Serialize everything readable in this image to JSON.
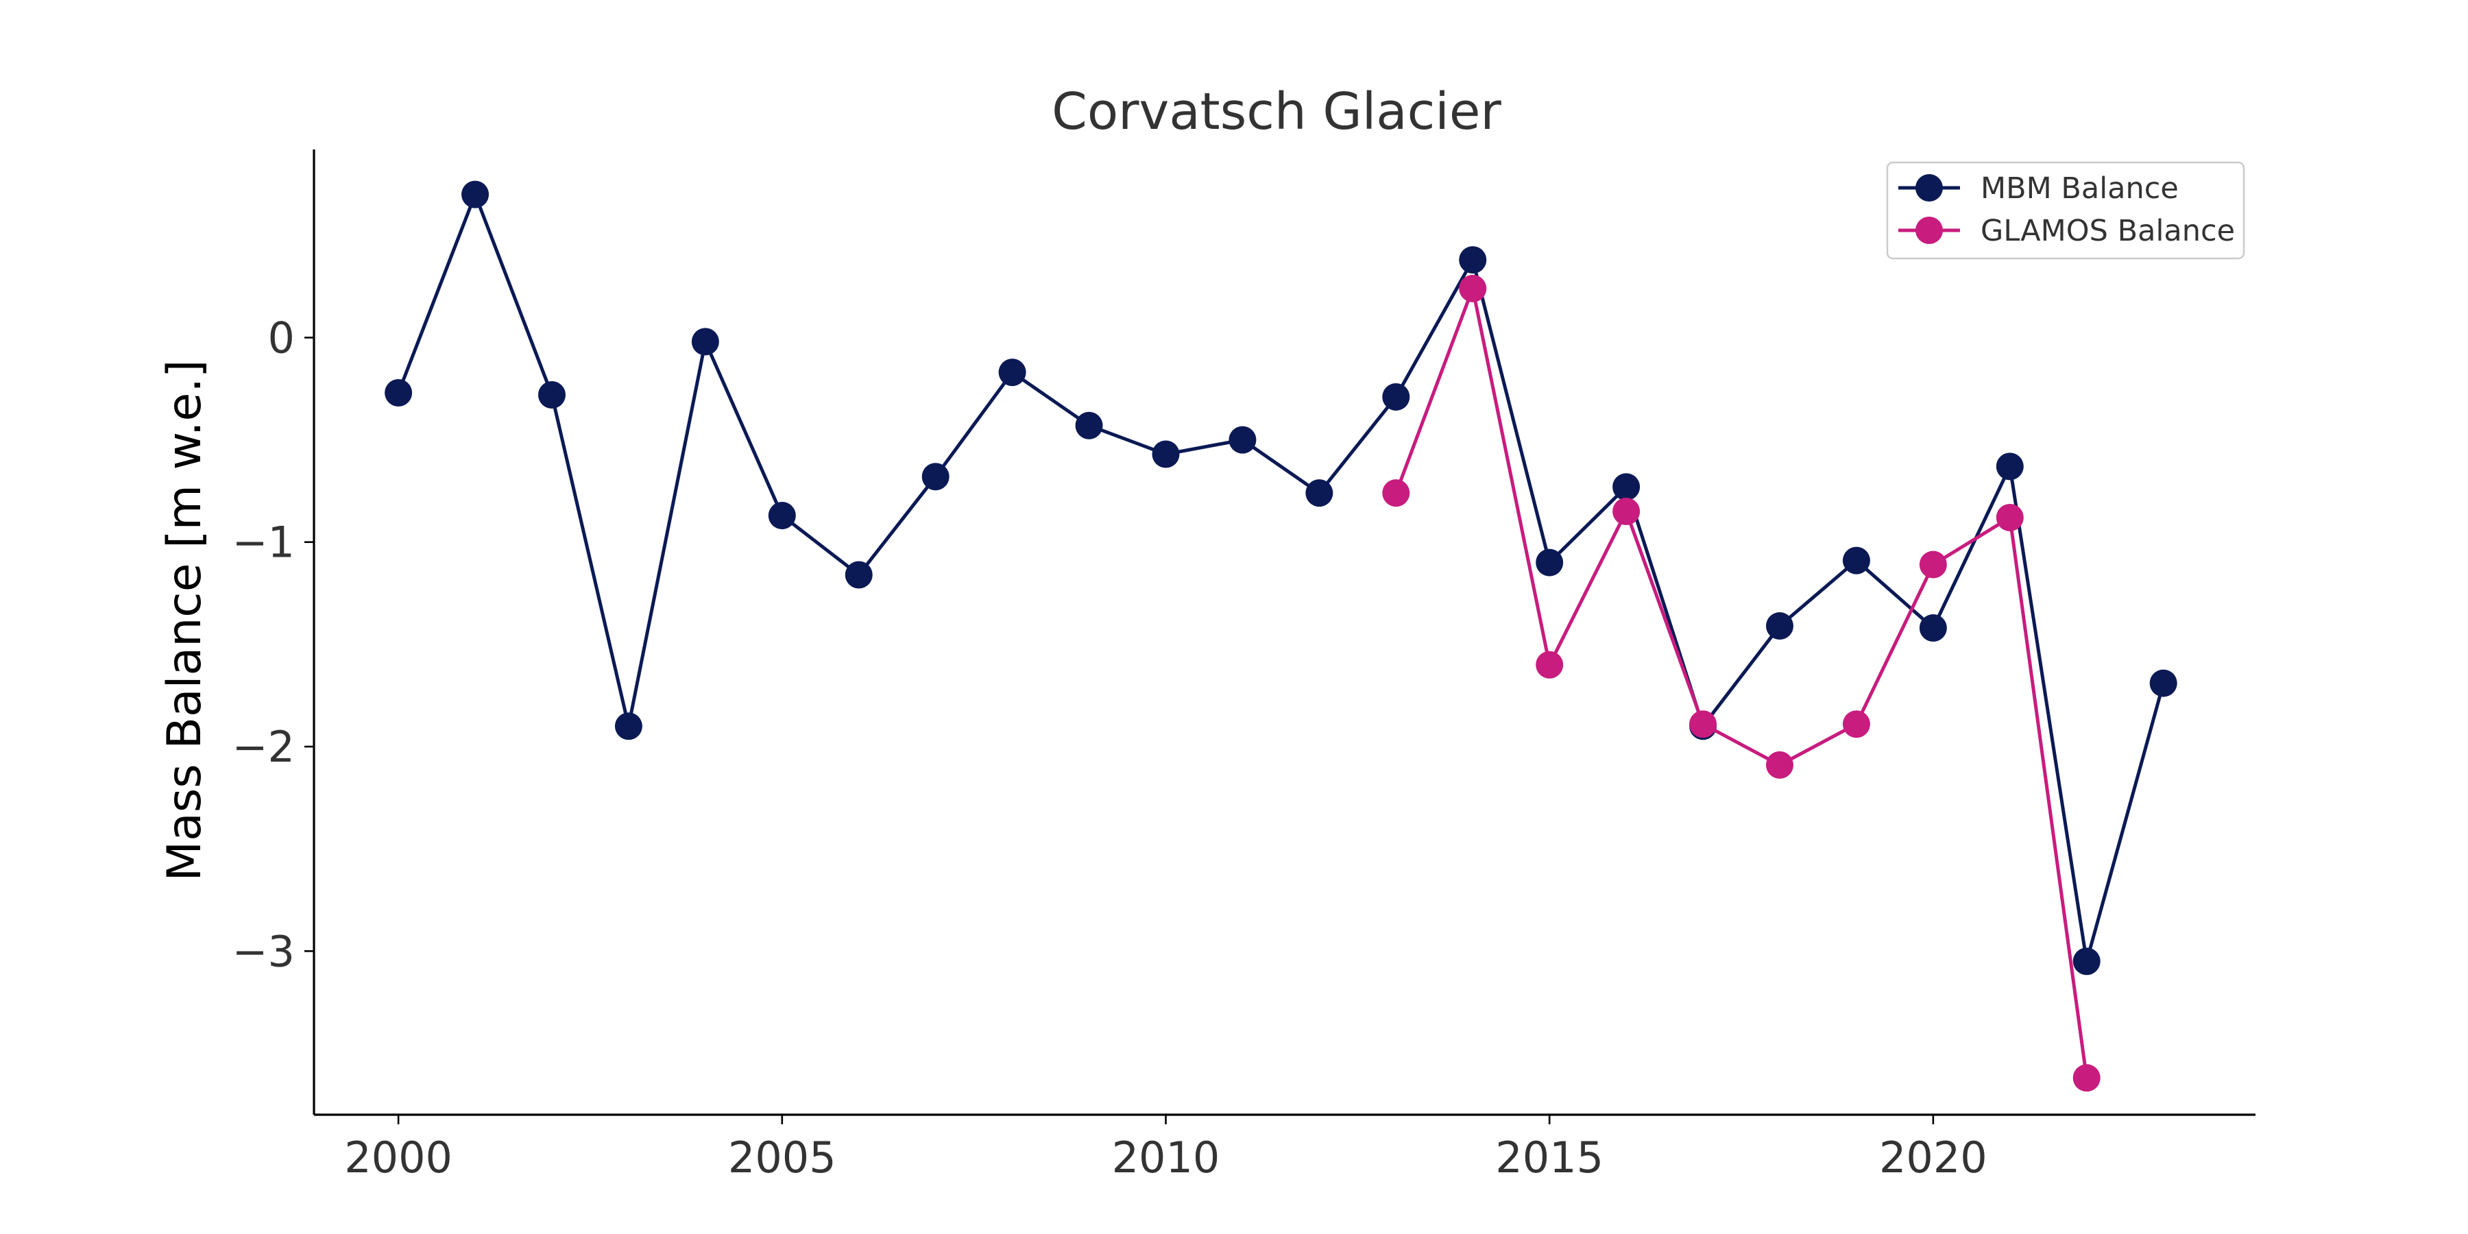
{
  "chart_data": {
    "type": "line",
    "title": "Corvatsch Glacier",
    "xlabel": "",
    "ylabel": "Mass Balance [m w.e.]",
    "xlim": [
      1998.9,
      2024.2
    ],
    "ylim": [
      -3.8,
      0.92
    ],
    "x_ticks": [
      2000,
      2005,
      2010,
      2015,
      2020
    ],
    "y_ticks": [
      0,
      -1,
      -2,
      -3
    ],
    "y_tick_labels": [
      "0",
      "−1",
      "−2",
      "−3"
    ],
    "grid": false,
    "legend": "top-right",
    "series": [
      {
        "name": "MBM Balance",
        "color": "#0b1a55",
        "marker": "circle",
        "x": [
          2000,
          2001,
          2002,
          2003,
          2004,
          2005,
          2006,
          2007,
          2008,
          2009,
          2010,
          2011,
          2012,
          2013,
          2014,
          2015,
          2016,
          2017,
          2018,
          2019,
          2020,
          2021,
          2022,
          2023
        ],
        "y": [
          -0.27,
          0.7,
          -0.28,
          -1.9,
          -0.02,
          -0.87,
          -1.16,
          -0.68,
          -0.17,
          -0.43,
          -0.57,
          -0.5,
          -0.76,
          -0.29,
          0.38,
          -1.1,
          -0.73,
          -1.9,
          -1.41,
          -1.09,
          -1.42,
          -0.63,
          -3.05,
          -1.69
        ]
      },
      {
        "name": "GLAMOS Balance",
        "color": "#c81c7e",
        "marker": "circle",
        "x": [
          2013,
          2014,
          2015,
          2016,
          2017,
          2018,
          2019,
          2020,
          2021,
          2022
        ],
        "y": [
          -0.76,
          0.24,
          -1.6,
          -0.85,
          -1.89,
          -2.09,
          -1.89,
          -1.11,
          -0.88,
          -3.62
        ]
      }
    ]
  }
}
